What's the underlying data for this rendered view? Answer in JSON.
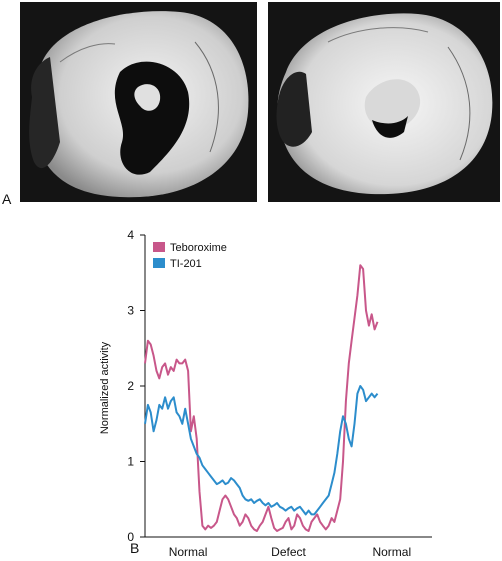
{
  "panels": {
    "a_label": "A",
    "b_label": "B"
  },
  "images": [
    {
      "subject": "heart-cross-section-left",
      "color_bg": "#141414",
      "color_tissue": "#d8d8d8"
    },
    {
      "subject": "heart-cross-section-right",
      "color_bg": "#141414",
      "color_tissue": "#e4e4e4"
    }
  ],
  "chart_data": {
    "type": "line",
    "title": "",
    "xlabel": "",
    "ylabel": "Normalized activity",
    "ylim": [
      0,
      4
    ],
    "xlim": [
      0,
      100
    ],
    "y_ticks": [
      0,
      1,
      2,
      3,
      4
    ],
    "x_categories": [
      {
        "label": "Normal",
        "x": 15
      },
      {
        "label": "Defect",
        "x": 50
      },
      {
        "label": "Normal",
        "x": 86
      }
    ],
    "grid": false,
    "legend_position": "top-left",
    "series": [
      {
        "name": "Teboroxime",
        "color": "#c8578a",
        "points": [
          [
            0,
            2.3
          ],
          [
            1,
            2.6
          ],
          [
            2,
            2.55
          ],
          [
            3,
            2.4
          ],
          [
            4,
            2.2
          ],
          [
            5,
            2.1
          ],
          [
            6,
            2.25
          ],
          [
            7,
            2.3
          ],
          [
            8,
            2.15
          ],
          [
            9,
            2.25
          ],
          [
            10,
            2.2
          ],
          [
            11,
            2.35
          ],
          [
            12,
            2.3
          ],
          [
            13,
            2.3
          ],
          [
            14,
            2.35
          ],
          [
            15,
            2.2
          ],
          [
            16,
            1.4
          ],
          [
            17,
            1.6
          ],
          [
            18,
            1.3
          ],
          [
            19,
            0.6
          ],
          [
            20,
            0.15
          ],
          [
            21,
            0.1
          ],
          [
            22,
            0.15
          ],
          [
            23,
            0.12
          ],
          [
            24,
            0.15
          ],
          [
            25,
            0.2
          ],
          [
            26,
            0.35
          ],
          [
            27,
            0.5
          ],
          [
            28,
            0.55
          ],
          [
            29,
            0.5
          ],
          [
            30,
            0.4
          ],
          [
            31,
            0.3
          ],
          [
            32,
            0.25
          ],
          [
            33,
            0.15
          ],
          [
            34,
            0.2
          ],
          [
            35,
            0.3
          ],
          [
            36,
            0.25
          ],
          [
            37,
            0.15
          ],
          [
            38,
            0.1
          ],
          [
            39,
            0.08
          ],
          [
            40,
            0.15
          ],
          [
            41,
            0.2
          ],
          [
            42,
            0.3
          ],
          [
            43,
            0.4
          ],
          [
            44,
            0.25
          ],
          [
            45,
            0.12
          ],
          [
            46,
            0.08
          ],
          [
            47,
            0.1
          ],
          [
            48,
            0.12
          ],
          [
            49,
            0.2
          ],
          [
            50,
            0.25
          ],
          [
            51,
            0.1
          ],
          [
            52,
            0.15
          ],
          [
            53,
            0.3
          ],
          [
            54,
            0.25
          ],
          [
            55,
            0.15
          ],
          [
            56,
            0.1
          ],
          [
            57,
            0.08
          ],
          [
            58,
            0.2
          ],
          [
            59,
            0.25
          ],
          [
            60,
            0.3
          ],
          [
            61,
            0.2
          ],
          [
            62,
            0.15
          ],
          [
            63,
            0.1
          ],
          [
            64,
            0.15
          ],
          [
            65,
            0.25
          ],
          [
            66,
            0.2
          ],
          [
            67,
            0.35
          ],
          [
            68,
            0.5
          ],
          [
            69,
            1.0
          ],
          [
            70,
            1.8
          ],
          [
            71,
            2.3
          ],
          [
            72,
            2.6
          ],
          [
            73,
            2.9
          ],
          [
            74,
            3.2
          ],
          [
            75,
            3.6
          ],
          [
            76,
            3.55
          ],
          [
            77,
            3.0
          ],
          [
            78,
            2.8
          ],
          [
            79,
            2.95
          ],
          [
            80,
            2.75
          ],
          [
            81,
            2.85
          ]
        ]
      },
      {
        "name": "TI-201",
        "color": "#2c8dcc",
        "points": [
          [
            0,
            1.5
          ],
          [
            1,
            1.75
          ],
          [
            2,
            1.65
          ],
          [
            3,
            1.4
          ],
          [
            4,
            1.55
          ],
          [
            5,
            1.75
          ],
          [
            6,
            1.7
          ],
          [
            7,
            1.85
          ],
          [
            8,
            1.7
          ],
          [
            9,
            1.8
          ],
          [
            10,
            1.85
          ],
          [
            11,
            1.65
          ],
          [
            12,
            1.6
          ],
          [
            13,
            1.5
          ],
          [
            14,
            1.7
          ],
          [
            15,
            1.5
          ],
          [
            16,
            1.3
          ],
          [
            17,
            1.2
          ],
          [
            18,
            1.1
          ],
          [
            19,
            1.05
          ],
          [
            20,
            0.95
          ],
          [
            21,
            0.9
          ],
          [
            22,
            0.85
          ],
          [
            23,
            0.8
          ],
          [
            24,
            0.75
          ],
          [
            25,
            0.7
          ],
          [
            26,
            0.72
          ],
          [
            27,
            0.75
          ],
          [
            28,
            0.7
          ],
          [
            29,
            0.72
          ],
          [
            30,
            0.78
          ],
          [
            31,
            0.75
          ],
          [
            32,
            0.7
          ],
          [
            33,
            0.65
          ],
          [
            34,
            0.55
          ],
          [
            35,
            0.5
          ],
          [
            36,
            0.48
          ],
          [
            37,
            0.5
          ],
          [
            38,
            0.45
          ],
          [
            39,
            0.48
          ],
          [
            40,
            0.5
          ],
          [
            41,
            0.45
          ],
          [
            42,
            0.42
          ],
          [
            43,
            0.45
          ],
          [
            44,
            0.4
          ],
          [
            45,
            0.42
          ],
          [
            46,
            0.45
          ],
          [
            47,
            0.4
          ],
          [
            48,
            0.38
          ],
          [
            49,
            0.35
          ],
          [
            50,
            0.38
          ],
          [
            51,
            0.4
          ],
          [
            52,
            0.35
          ],
          [
            53,
            0.38
          ],
          [
            54,
            0.4
          ],
          [
            55,
            0.35
          ],
          [
            56,
            0.3
          ],
          [
            57,
            0.35
          ],
          [
            58,
            0.3
          ],
          [
            59,
            0.3
          ],
          [
            60,
            0.35
          ],
          [
            61,
            0.4
          ],
          [
            62,
            0.45
          ],
          [
            63,
            0.5
          ],
          [
            64,
            0.55
          ],
          [
            65,
            0.7
          ],
          [
            66,
            0.85
          ],
          [
            67,
            1.1
          ],
          [
            68,
            1.4
          ],
          [
            69,
            1.6
          ],
          [
            70,
            1.5
          ],
          [
            71,
            1.3
          ],
          [
            72,
            1.2
          ],
          [
            73,
            1.5
          ],
          [
            74,
            1.9
          ],
          [
            75,
            2.0
          ],
          [
            76,
            1.95
          ],
          [
            77,
            1.8
          ],
          [
            78,
            1.85
          ],
          [
            79,
            1.9
          ],
          [
            80,
            1.85
          ],
          [
            81,
            1.9
          ]
        ]
      }
    ]
  }
}
